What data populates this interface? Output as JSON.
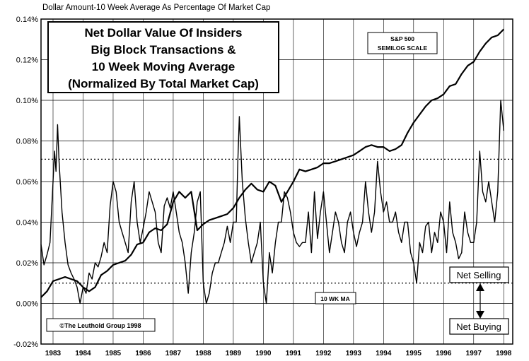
{
  "chart_data": {
    "type": "line",
    "header": "Dollar Amount-10 Week Average As Percentage Of Market Cap",
    "title_lines": [
      "Net Dollar Value Of Insiders",
      "Big Block Transactions &",
      "10 Week Moving Average",
      "(Normalized By Total Market Cap)"
    ],
    "ylim": [
      -0.02,
      0.14
    ],
    "yticks": [
      {
        "value": 0.14,
        "label": "0.14%"
      },
      {
        "value": 0.12,
        "label": "0.12%"
      },
      {
        "value": 0.1,
        "label": "0.10%"
      },
      {
        "value": 0.08,
        "label": "0.08%"
      },
      {
        "value": 0.06,
        "label": "0.06%"
      },
      {
        "value": 0.04,
        "label": "0.04%"
      },
      {
        "value": 0.02,
        "label": "0.02%"
      },
      {
        "value": 0.0,
        "label": "0.00%"
      },
      {
        "value": -0.02,
        "label": "-0.02%"
      }
    ],
    "xlim": [
      1982.6,
      1998.3
    ],
    "xticks": [
      {
        "value": 1983,
        "label": "1983"
      },
      {
        "value": 1984,
        "label": "1984"
      },
      {
        "value": 1985,
        "label": "1985"
      },
      {
        "value": 1986,
        "label": "1986"
      },
      {
        "value": 1987,
        "label": "1987"
      },
      {
        "value": 1988,
        "label": "1988"
      },
      {
        "value": 1989,
        "label": "1989"
      },
      {
        "value": 1990,
        "label": "1990"
      },
      {
        "value": 1991,
        "label": "1991"
      },
      {
        "value": 1992,
        "label": "1992"
      },
      {
        "value": 1993,
        "label": "1993"
      },
      {
        "value": 1994,
        "label": "1994"
      },
      {
        "value": 1995,
        "label": "1995"
      },
      {
        "value": 1996,
        "label": "1996"
      },
      {
        "value": 1997,
        "label": "1997"
      },
      {
        "value": 1998,
        "label": "1998"
      }
    ],
    "reference_lines": [
      0.071,
      0.01
    ],
    "series": [
      {
        "name": "10 WK MA",
        "x": [
          1982.6,
          1982.7,
          1982.8,
          1982.9,
          1983.0,
          1983.05,
          1983.1,
          1983.15,
          1983.2,
          1983.3,
          1983.4,
          1983.5,
          1983.6,
          1983.7,
          1983.8,
          1983.9,
          1984.0,
          1984.1,
          1984.2,
          1984.3,
          1984.4,
          1984.5,
          1984.6,
          1984.7,
          1984.8,
          1984.9,
          1985.0,
          1985.1,
          1985.2,
          1985.3,
          1985.4,
          1985.5,
          1985.6,
          1985.7,
          1985.8,
          1985.9,
          1986.0,
          1986.1,
          1986.2,
          1986.3,
          1986.4,
          1986.5,
          1986.6,
          1986.7,
          1986.8,
          1986.9,
          1987.0,
          1987.1,
          1987.2,
          1987.3,
          1987.4,
          1987.5,
          1987.6,
          1987.7,
          1987.8,
          1987.9,
          1988.0,
          1988.1,
          1988.2,
          1988.3,
          1988.4,
          1988.5,
          1988.6,
          1988.7,
          1988.8,
          1988.9,
          1989.0,
          1989.1,
          1989.15,
          1989.2,
          1989.3,
          1989.4,
          1989.5,
          1989.6,
          1989.7,
          1989.8,
          1989.9,
          1990.0,
          1990.1,
          1990.2,
          1990.3,
          1990.4,
          1990.5,
          1990.6,
          1990.7,
          1990.8,
          1990.9,
          1991.0,
          1991.1,
          1991.2,
          1991.3,
          1991.4,
          1991.5,
          1991.6,
          1991.7,
          1991.8,
          1991.9,
          1992.0,
          1992.1,
          1992.2,
          1992.3,
          1992.4,
          1992.5,
          1992.6,
          1992.7,
          1992.8,
          1992.9,
          1993.0,
          1993.1,
          1993.2,
          1993.3,
          1993.4,
          1993.5,
          1993.6,
          1993.7,
          1993.8,
          1993.9,
          1994.0,
          1994.1,
          1994.2,
          1994.3,
          1994.4,
          1994.5,
          1994.6,
          1994.7,
          1994.8,
          1994.9,
          1995.0,
          1995.1,
          1995.2,
          1995.3,
          1995.4,
          1995.5,
          1995.6,
          1995.7,
          1995.8,
          1995.9,
          1996.0,
          1996.1,
          1996.2,
          1996.3,
          1996.4,
          1996.5,
          1996.6,
          1996.7,
          1996.8,
          1996.9,
          1997.0,
          1997.1,
          1997.2,
          1997.3,
          1997.4,
          1997.5,
          1997.6,
          1997.7,
          1997.8,
          1997.9,
          1998.0
        ],
        "y": [
          0.029,
          0.019,
          0.024,
          0.03,
          0.06,
          0.075,
          0.065,
          0.088,
          0.07,
          0.045,
          0.03,
          0.019,
          0.015,
          0.012,
          0.008,
          0.0,
          0.008,
          0.005,
          0.015,
          0.012,
          0.02,
          0.018,
          0.023,
          0.03,
          0.025,
          0.048,
          0.06,
          0.055,
          0.04,
          0.035,
          0.03,
          0.025,
          0.05,
          0.06,
          0.04,
          0.03,
          0.037,
          0.045,
          0.055,
          0.05,
          0.045,
          0.03,
          0.025,
          0.048,
          0.052,
          0.047,
          0.055,
          0.045,
          0.035,
          0.03,
          0.02,
          0.005,
          0.025,
          0.035,
          0.05,
          0.055,
          0.01,
          0.0,
          0.005,
          0.015,
          0.02,
          0.02,
          0.025,
          0.03,
          0.038,
          0.03,
          0.04,
          0.04,
          0.07,
          0.092,
          0.06,
          0.042,
          0.03,
          0.02,
          0.025,
          0.03,
          0.04,
          0.01,
          0.0,
          0.025,
          0.015,
          0.03,
          0.04,
          0.04,
          0.055,
          0.052,
          0.045,
          0.035,
          0.03,
          0.028,
          0.03,
          0.03,
          0.045,
          0.025,
          0.055,
          0.032,
          0.045,
          0.055,
          0.04,
          0.025,
          0.035,
          0.045,
          0.04,
          0.03,
          0.025,
          0.04,
          0.045,
          0.035,
          0.028,
          0.035,
          0.04,
          0.06,
          0.045,
          0.035,
          0.045,
          0.07,
          0.055,
          0.045,
          0.05,
          0.04,
          0.04,
          0.045,
          0.035,
          0.03,
          0.04,
          0.04,
          0.025,
          0.02,
          0.01,
          0.03,
          0.025,
          0.038,
          0.04,
          0.025,
          0.035,
          0.03,
          0.045,
          0.04,
          0.025,
          0.05,
          0.035,
          0.03,
          0.022,
          0.025,
          0.045,
          0.035,
          0.03,
          0.03,
          0.04,
          0.075,
          0.055,
          0.05,
          0.06,
          0.05,
          0.04,
          0.055,
          0.1,
          0.085
        ]
      },
      {
        "name": "S&P 500",
        "x": [
          1982.6,
          1982.8,
          1983.0,
          1983.2,
          1983.4,
          1983.6,
          1983.8,
          1984.0,
          1984.2,
          1984.4,
          1984.6,
          1984.8,
          1985.0,
          1985.2,
          1985.4,
          1985.6,
          1985.8,
          1986.0,
          1986.2,
          1986.4,
          1986.6,
          1986.8,
          1987.0,
          1987.2,
          1987.4,
          1987.6,
          1987.8,
          1988.0,
          1988.2,
          1988.4,
          1988.6,
          1988.8,
          1989.0,
          1989.2,
          1989.4,
          1989.6,
          1989.8,
          1990.0,
          1990.2,
          1990.4,
          1990.6,
          1990.8,
          1991.0,
          1991.2,
          1991.4,
          1991.6,
          1991.8,
          1992.0,
          1992.2,
          1992.4,
          1992.6,
          1992.8,
          1993.0,
          1993.2,
          1993.4,
          1993.6,
          1993.8,
          1994.0,
          1994.2,
          1994.4,
          1994.6,
          1994.8,
          1995.0,
          1995.2,
          1995.4,
          1995.6,
          1995.8,
          1996.0,
          1996.2,
          1996.4,
          1996.6,
          1996.8,
          1997.0,
          1997.2,
          1997.4,
          1997.6,
          1997.8,
          1998.0
        ],
        "y": [
          0.003,
          0.006,
          0.011,
          0.012,
          0.013,
          0.012,
          0.011,
          0.008,
          0.006,
          0.008,
          0.014,
          0.016,
          0.019,
          0.02,
          0.021,
          0.024,
          0.029,
          0.03,
          0.035,
          0.037,
          0.036,
          0.039,
          0.05,
          0.055,
          0.052,
          0.055,
          0.036,
          0.039,
          0.041,
          0.042,
          0.043,
          0.044,
          0.047,
          0.052,
          0.056,
          0.059,
          0.056,
          0.055,
          0.06,
          0.058,
          0.05,
          0.055,
          0.06,
          0.066,
          0.065,
          0.066,
          0.067,
          0.069,
          0.069,
          0.07,
          0.071,
          0.072,
          0.073,
          0.075,
          0.077,
          0.078,
          0.077,
          0.077,
          0.075,
          0.076,
          0.078,
          0.084,
          0.089,
          0.093,
          0.097,
          0.1,
          0.101,
          0.103,
          0.107,
          0.108,
          0.113,
          0.117,
          0.119,
          0.124,
          0.128,
          0.131,
          0.132,
          0.135
        ]
      }
    ],
    "annotations": {
      "sp500_label_lines": [
        "S&P 500",
        "SEMILOG SCALE"
      ],
      "ma_label": "10 WK MA",
      "copyright": "©The Leuthold Group 1998",
      "net_selling": "Net Selling",
      "net_buying": "Net Buying"
    }
  }
}
